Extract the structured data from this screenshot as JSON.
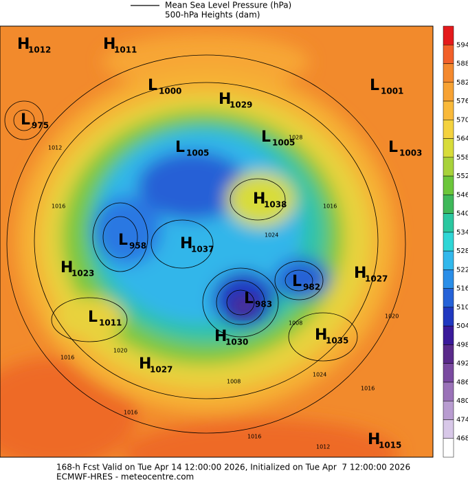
{
  "legend": {
    "mslp": "Mean Sea Level Pressure (hPa)",
    "heights": "500-hPa Heights (dam)"
  },
  "colorbar": {
    "labels": [
      594,
      588,
      582,
      576,
      570,
      564,
      558,
      552,
      546,
      540,
      534,
      528,
      522,
      516,
      510,
      504,
      498,
      492,
      486,
      480,
      474,
      468
    ]
  },
  "centers": [
    {
      "letter": "H",
      "value": 1012
    },
    {
      "letter": "H",
      "value": 1011
    },
    {
      "letter": "L",
      "value": 1000
    },
    {
      "letter": "H",
      "value": 1029
    },
    {
      "letter": "L",
      "value": 975
    },
    {
      "letter": "L",
      "value": 1005
    },
    {
      "letter": "L",
      "value": 1003
    },
    {
      "letter": "L",
      "value": 1001
    },
    {
      "letter": "L",
      "value": 1005
    },
    {
      "letter": "H",
      "value": 1038
    },
    {
      "letter": "L",
      "value": 958
    },
    {
      "letter": "H",
      "value": 1037
    },
    {
      "letter": "H",
      "value": 1023
    },
    {
      "letter": "L",
      "value": 982
    },
    {
      "letter": "H",
      "value": 1027
    },
    {
      "letter": "L",
      "value": 983
    },
    {
      "letter": "L",
      "value": 1011
    },
    {
      "letter": "H",
      "value": 1030
    },
    {
      "letter": "H",
      "value": 1035
    },
    {
      "letter": "H",
      "value": 1027
    },
    {
      "letter": "H",
      "value": 1015
    }
  ],
  "isobar_labels": [
    1012,
    1016,
    1016,
    1008,
    1016,
    1020,
    1024,
    1028,
    1016,
    1020,
    1012,
    1016,
    1008,
    1024,
    1016
  ],
  "footer": {
    "line1": "168-h Fcst Valid on Tue Apr 14 12:00:00 2026, Initialized on Tue Apr  7 12:00:00 2026",
    "line2": "ECMWF-HRES - meteocentre.com"
  }
}
